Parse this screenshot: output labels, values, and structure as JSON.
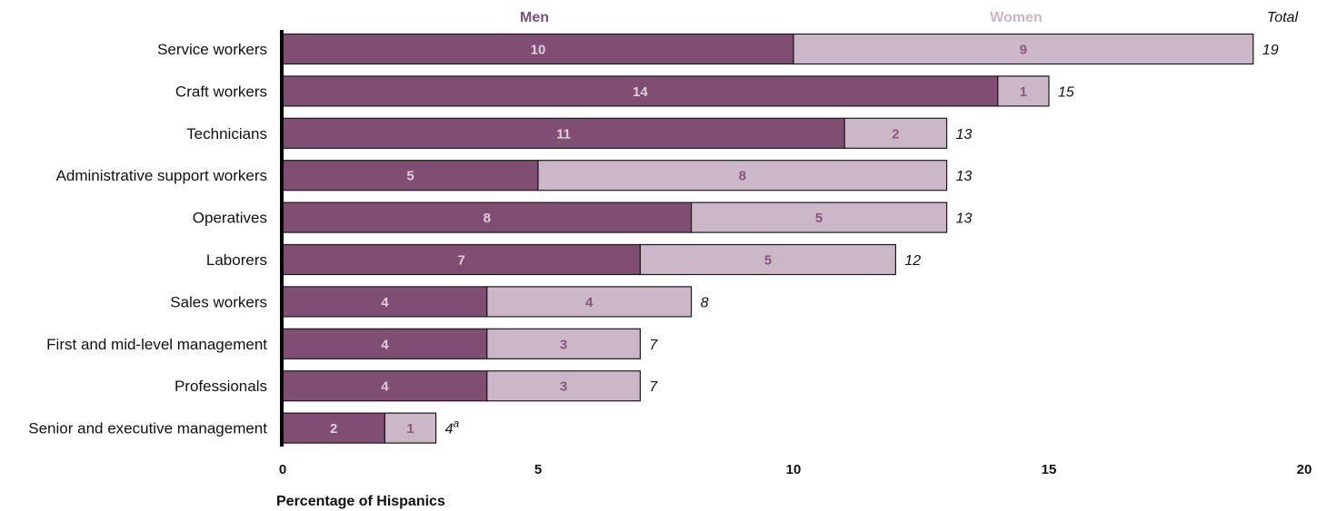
{
  "chart_data": {
    "type": "bar",
    "orientation": "horizontal",
    "stacked": true,
    "categories": [
      "Service workers",
      "Craft workers",
      "Technicians",
      "Administrative support workers",
      "Operatives",
      "Laborers",
      "Sales workers",
      "First and mid-level management",
      "Professionals",
      "Senior and executive management"
    ],
    "series": [
      {
        "name": "Men",
        "values": [
          10,
          14,
          11,
          5,
          8,
          7,
          4,
          4,
          4,
          2
        ],
        "color": "#804d73",
        "label_color": "#e2cdd9"
      },
      {
        "name": "Women",
        "values": [
          9,
          1,
          2,
          8,
          5,
          5,
          4,
          3,
          3,
          1
        ],
        "color": "#cbb7c8",
        "label_color": "#8a5580"
      }
    ],
    "totals_header": "Total",
    "totals": [
      "19",
      "15",
      "13",
      "13",
      "13",
      "12",
      "8",
      "7",
      "7",
      "4"
    ],
    "total_footnotes": [
      "",
      "",
      "",
      "",
      "",
      "",
      "",
      "",
      "",
      "a"
    ],
    "xlabel": "Percentage of Hispanics",
    "xlim": [
      0,
      20
    ],
    "xticks": [
      0,
      5,
      10,
      15,
      20
    ],
    "grid": false,
    "legend_position": "top"
  }
}
